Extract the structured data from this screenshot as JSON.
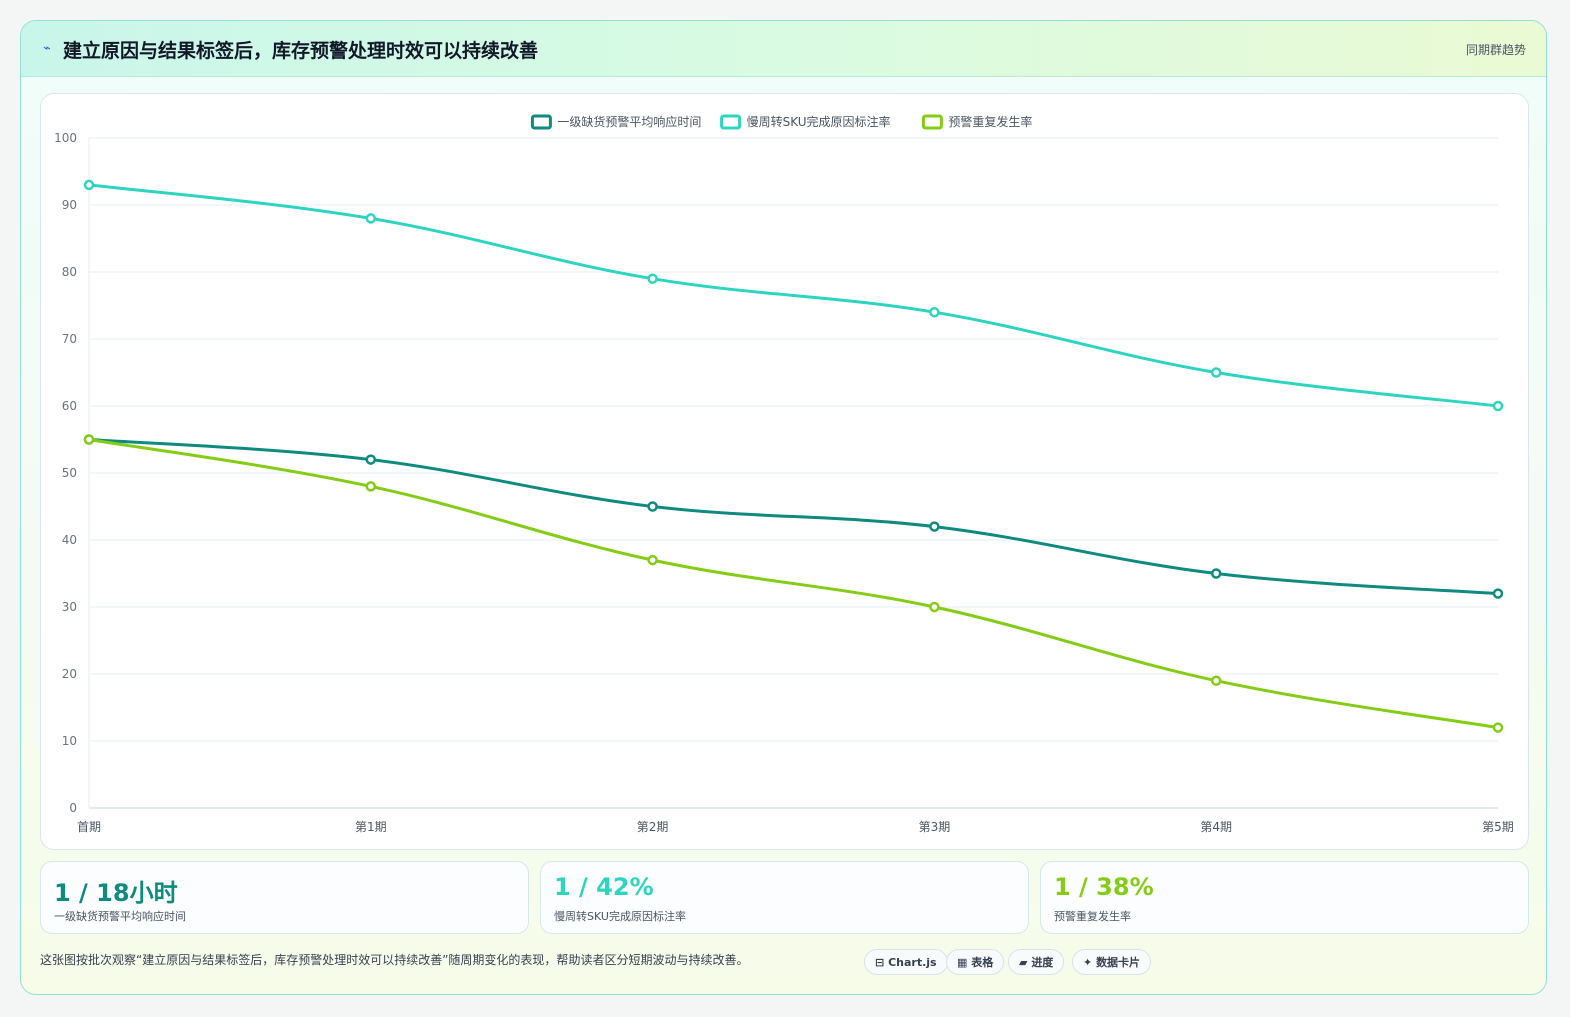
{
  "header": {
    "icon": "⌁",
    "title": "建立原因与结果标签后，库存预警处理时效可以持续改善",
    "tag": "同期群趋势"
  },
  "chart_data": {
    "type": "line",
    "categories": [
      "首期",
      "第1期",
      "第2期",
      "第3期",
      "第4期",
      "第5期"
    ],
    "ylim": [
      0,
      100
    ],
    "yticks": [
      0,
      10,
      20,
      30,
      40,
      50,
      60,
      70,
      80,
      90,
      100
    ],
    "grid": true,
    "legend_position": "top",
    "series": [
      {
        "name": "一级缺货预警平均响应时间",
        "color": "#0f8a7e",
        "values": [
          55,
          52,
          45,
          42,
          35,
          32
        ]
      },
      {
        "name": "慢周转SKU完成原因标注率",
        "color": "#2dd4bf",
        "values": [
          93,
          88,
          79,
          74,
          65,
          60
        ]
      },
      {
        "name": "预警重复发生率",
        "color": "#84cc16",
        "values": [
          55,
          48,
          37,
          30,
          19,
          12
        ]
      }
    ]
  },
  "stats": [
    {
      "value": "1 / 18小时",
      "label": "一级缺货预警平均响应时间",
      "color": "#0f8a7e"
    },
    {
      "value": "1 / 42%",
      "label": "慢周转SKU完成原因标注率",
      "color": "#2dd4bf"
    },
    {
      "value": "1 / 38%",
      "label": "预警重复发生率",
      "color": "#84cc16"
    }
  ],
  "description": "这张图按批次观察“建立原因与结果标签后，库存预警处理时效可以持续改善”随周期变化的表现，帮助读者区分短期波动与持续改善。",
  "chips": [
    {
      "icon": "⊟",
      "label": "Chart.js"
    },
    {
      "icon": "▦",
      "label": "表格"
    },
    {
      "icon": "▰",
      "label": "进度"
    },
    {
      "icon": "✦",
      "label": "数据卡片"
    }
  ]
}
